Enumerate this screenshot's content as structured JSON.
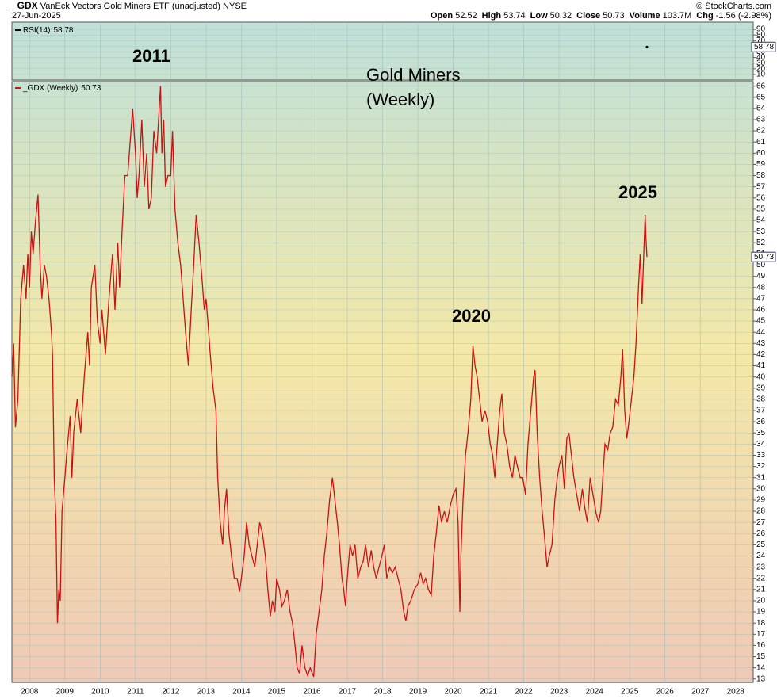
{
  "header": {
    "symbol": "_GDX",
    "name": "VanEck Vectors Gold Miners ETF (unadjusted)",
    "exchange": "NYSE",
    "date": "27-Jun-2025",
    "quote": [
      {
        "label": "Open",
        "value": "52.52"
      },
      {
        "label": "High",
        "value": "53.74"
      },
      {
        "label": "Low",
        "value": "50.32"
      },
      {
        "label": "Close",
        "value": "50.73"
      },
      {
        "label": "Volume",
        "value": "103.7M"
      },
      {
        "label": "Chg",
        "value": "-1.56 (-2.98%)"
      }
    ],
    "copyright": "© StockCharts.com"
  },
  "chart_data": [
    {
      "type": "line",
      "x": [
        2025.49
      ],
      "series": [
        {
          "name": "RSI(14)",
          "color": "#000000",
          "values": [
            58.78
          ]
        }
      ],
      "xlim": [
        2007.5,
        2028.5
      ],
      "ylim": [
        0,
        100
      ],
      "yticks": [
        10,
        20,
        30,
        40,
        50,
        60,
        70,
        80,
        90
      ],
      "grid": true
    },
    {
      "type": "line",
      "x": [
        2007.5,
        2007.55,
        2007.6,
        2007.67,
        2007.75,
        2007.83,
        2007.9,
        2007.95,
        2008.0,
        2008.05,
        2008.1,
        2008.17,
        2008.24,
        2008.3,
        2008.35,
        2008.42,
        2008.48,
        2008.55,
        2008.62,
        2008.65,
        2008.7,
        2008.75,
        2008.79,
        2008.83,
        2008.87,
        2008.92,
        2009.0,
        2009.05,
        2009.15,
        2009.2,
        2009.25,
        2009.35,
        2009.45,
        2009.55,
        2009.65,
        2009.7,
        2009.75,
        2009.85,
        2009.92,
        2010.0,
        2010.05,
        2010.15,
        2010.25,
        2010.35,
        2010.42,
        2010.5,
        2010.55,
        2010.62,
        2010.7,
        2010.78,
        2010.85,
        2010.92,
        2011.0,
        2011.05,
        2011.1,
        2011.18,
        2011.25,
        2011.32,
        2011.38,
        2011.45,
        2011.52,
        2011.6,
        2011.71,
        2011.75,
        2011.8,
        2011.85,
        2011.92,
        2012.0,
        2012.05,
        2012.12,
        2012.2,
        2012.28,
        2012.35,
        2012.42,
        2012.5,
        2012.58,
        2012.65,
        2012.72,
        2012.8,
        2012.88,
        2012.95,
        2013.0,
        2013.05,
        2013.12,
        2013.2,
        2013.28,
        2013.33,
        2013.4,
        2013.47,
        2013.52,
        2013.58,
        2013.65,
        2013.72,
        2013.8,
        2013.88,
        2013.95,
        2014.0,
        2014.08,
        2014.15,
        2014.22,
        2014.3,
        2014.38,
        2014.45,
        2014.52,
        2014.6,
        2014.68,
        2014.75,
        2014.82,
        2014.88,
        2014.95,
        2015.0,
        2015.08,
        2015.15,
        2015.22,
        2015.3,
        2015.38,
        2015.45,
        2015.52,
        2015.58,
        2015.65,
        2015.72,
        2015.8,
        2015.88,
        2015.95,
        2016.05,
        2016.12,
        2016.2,
        2016.28,
        2016.35,
        2016.42,
        2016.5,
        2016.58,
        2016.65,
        2016.72,
        2016.78,
        2016.85,
        2016.9,
        2016.95,
        2017.0,
        2017.08,
        2017.15,
        2017.22,
        2017.3,
        2017.38,
        2017.45,
        2017.52,
        2017.6,
        2017.68,
        2017.75,
        2017.82,
        2017.9,
        2017.98,
        2018.05,
        2018.12,
        2018.2,
        2018.28,
        2018.36,
        2018.44,
        2018.52,
        2018.6,
        2018.66,
        2018.72,
        2018.8,
        2018.9,
        2019.0,
        2019.08,
        2019.15,
        2019.22,
        2019.3,
        2019.38,
        2019.45,
        2019.52,
        2019.6,
        2019.67,
        2019.75,
        2019.83,
        2019.92,
        2020.0,
        2020.08,
        2020.14,
        2020.19,
        2020.22,
        2020.28,
        2020.35,
        2020.42,
        2020.5,
        2020.56,
        2020.62,
        2020.68,
        2020.75,
        2020.82,
        2020.9,
        2020.98,
        2021.05,
        2021.12,
        2021.18,
        2021.25,
        2021.32,
        2021.38,
        2021.45,
        2021.52,
        2021.6,
        2021.68,
        2021.75,
        2021.82,
        2021.9,
        2021.97,
        2022.05,
        2022.12,
        2022.2,
        2022.28,
        2022.32,
        2022.38,
        2022.45,
        2022.52,
        2022.58,
        2022.66,
        2022.72,
        2022.8,
        2022.88,
        2022.95,
        2023.0,
        2023.08,
        2023.15,
        2023.22,
        2023.28,
        2023.35,
        2023.42,
        2023.5,
        2023.58,
        2023.66,
        2023.72,
        2023.8,
        2023.88,
        2023.96,
        2024.05,
        2024.12,
        2024.18,
        2024.24,
        2024.3,
        2024.38,
        2024.45,
        2024.52,
        2024.6,
        2024.68,
        2024.75,
        2024.8,
        2024.86,
        2024.92,
        2024.98,
        2025.05,
        2025.12,
        2025.18,
        2025.25,
        2025.3,
        2025.35,
        2025.4,
        2025.44,
        2025.46,
        2025.49
      ],
      "series": [
        {
          "name": "_GDX (Weekly)",
          "color": "#cc1111",
          "values": [
            40,
            43,
            35.5,
            38,
            47,
            50,
            47,
            51,
            48,
            53,
            51,
            54,
            56.3,
            50,
            47,
            50,
            49,
            47,
            44,
            42,
            31,
            27,
            18,
            21,
            20,
            28,
            31,
            33,
            36.5,
            31,
            35,
            38,
            35,
            40,
            44,
            41,
            48,
            50,
            45,
            43,
            46,
            42,
            47,
            51,
            46,
            52,
            48,
            53,
            58,
            58,
            61,
            64,
            60,
            56,
            58,
            63,
            57,
            60,
            55,
            56,
            62,
            60,
            66,
            60,
            63,
            57,
            58,
            58,
            62,
            55,
            52,
            50,
            47,
            44,
            41,
            46,
            50,
            54.5,
            52,
            49,
            46,
            47,
            45,
            42,
            39,
            37,
            31,
            27,
            25,
            28,
            30,
            26,
            24,
            22,
            22,
            20.8,
            22,
            24,
            27,
            25,
            24,
            23,
            25,
            27,
            26,
            24,
            21,
            18.6,
            20,
            19,
            22,
            21,
            19.5,
            20,
            21,
            19,
            18,
            16,
            14,
            13.5,
            16,
            14,
            13.3,
            14,
            13.2,
            17,
            19,
            21,
            24,
            26,
            29,
            31,
            29,
            27,
            25,
            22,
            21,
            19.5,
            22,
            25,
            24,
            25,
            22,
            23,
            23.5,
            25,
            23,
            24.5,
            23,
            22,
            23,
            24,
            25,
            22,
            23,
            22.5,
            23,
            22,
            21,
            19,
            18.2,
            19.5,
            20,
            21,
            21.5,
            22.5,
            21.5,
            22,
            21,
            20.5,
            24,
            26,
            28.5,
            27,
            28,
            27,
            28.5,
            29.5,
            30,
            27,
            19,
            24,
            29,
            33,
            35,
            38,
            42.8,
            41,
            40,
            38,
            36,
            37,
            36,
            34,
            33,
            31,
            34,
            37,
            38.5,
            35,
            34,
            32,
            31,
            33,
            32,
            31,
            31,
            29.5,
            34,
            37,
            40,
            40.6,
            35,
            31,
            28,
            26,
            23,
            24,
            25,
            29,
            31,
            32,
            33,
            30,
            34.5,
            35,
            33,
            31,
            29.5,
            28,
            30,
            28.5,
            27,
            31,
            29.5,
            27.8,
            27,
            28,
            31,
            34,
            33.5,
            35,
            35.5,
            38,
            37.5,
            40,
            42.5,
            37,
            34.5,
            36,
            38,
            40,
            43,
            48,
            51,
            46.5,
            51,
            54.5,
            52.5,
            50.73
          ]
        }
      ],
      "xlim": [
        2007.5,
        2028.5
      ],
      "xticks": [
        2008,
        2009,
        2010,
        2011,
        2012,
        2013,
        2014,
        2015,
        2016,
        2017,
        2018,
        2019,
        2020,
        2021,
        2022,
        2023,
        2024,
        2025,
        2026,
        2027,
        2028
      ],
      "ylim": [
        12.7,
        66.4
      ],
      "yticks": [
        13,
        14,
        15,
        16,
        17,
        18,
        19,
        20,
        21,
        22,
        23,
        24,
        25,
        26,
        27,
        28,
        29,
        30,
        31,
        32,
        33,
        34,
        35,
        36,
        37,
        38,
        39,
        40,
        41,
        42,
        43,
        44,
        45,
        46,
        47,
        48,
        49,
        50,
        51,
        52,
        53,
        54,
        55,
        56,
        57,
        58,
        59,
        60,
        61,
        62,
        63,
        64,
        65,
        66
      ],
      "grid": true,
      "annotations": [
        "2011",
        "Gold Miners",
        "(Weekly)",
        "2020",
        "2025"
      ]
    }
  ]
}
